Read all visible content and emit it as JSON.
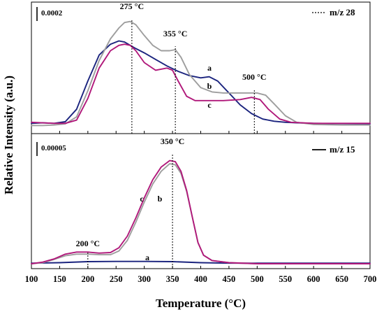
{
  "chart_data": {
    "type": "line",
    "xlabel": "Temperature (°C)",
    "ylabel": "Relative Intensity (a.u.)",
    "xlim": [
      100,
      700
    ],
    "xticks": [
      100,
      150,
      200,
      250,
      300,
      350,
      400,
      450,
      500,
      550,
      600,
      650,
      700
    ],
    "colors": {
      "a": "#1a237e",
      "b": "#9e9e9e",
      "c": "#b0187a"
    },
    "panels": [
      {
        "legend": "m/z 28",
        "legend_style": "dotted",
        "scale_bar": "0.0002",
        "ylim": [
          0,
          10
        ],
        "peak_labels": [
          {
            "label": "275 °C",
            "x": 278
          },
          {
            "label": "355 °C",
            "x": 355
          },
          {
            "label": "500 °C",
            "x": 495
          }
        ],
        "series_labels": [
          {
            "text": "a",
            "series": "a"
          },
          {
            "text": "b",
            "series": "b"
          },
          {
            "text": "c",
            "series": "c"
          }
        ],
        "series": [
          {
            "id": "a",
            "x": [
              100,
              120,
              140,
              160,
              180,
              200,
              220,
              240,
              255,
              265,
              275,
              285,
              300,
              320,
              340,
              360,
              380,
              400,
              415,
              430,
              450,
              470,
              490,
              510,
              530,
              550,
              570,
              600,
              650,
              700
            ],
            "y": [
              0.3,
              0.35,
              0.3,
              0.45,
              1.6,
              4.2,
              6.6,
              7.6,
              7.9,
              7.8,
              7.5,
              7.2,
              6.8,
              6.2,
              5.6,
              5.1,
              4.7,
              4.5,
              4.6,
              4.2,
              3.1,
              2.0,
              1.2,
              0.7,
              0.5,
              0.4,
              0.35,
              0.3,
              0.28,
              0.25
            ]
          },
          {
            "id": "b",
            "x": [
              100,
              120,
              140,
              160,
              180,
              200,
              220,
              240,
              255,
              265,
              275,
              285,
              300,
              315,
              330,
              345,
              355,
              365,
              380,
              400,
              420,
              440,
              460,
              480,
              500,
              515,
              530,
              550,
              570,
              600,
              650,
              700
            ],
            "y": [
              0.1,
              0.1,
              0.15,
              0.25,
              0.9,
              3.3,
              6.1,
              8.1,
              9.1,
              9.6,
              9.7,
              9.4,
              8.4,
              7.5,
              7.0,
              7.0,
              7.1,
              6.4,
              4.8,
              3.6,
              3.2,
              3.1,
              3.1,
              3.1,
              3.1,
              2.9,
              2.1,
              1.0,
              0.4,
              0.2,
              0.15,
              0.15
            ]
          },
          {
            "id": "c",
            "x": [
              100,
              140,
              160,
              180,
              200,
              220,
              240,
              255,
              265,
              275,
              285,
              300,
              320,
              340,
              350,
              360,
              375,
              390,
              410,
              440,
              470,
              490,
              505,
              520,
              540,
              560,
              600,
              650,
              700
            ],
            "y": [
              0.4,
              0.3,
              0.3,
              0.6,
              2.6,
              5.4,
              7.0,
              7.5,
              7.6,
              7.5,
              7.0,
              5.9,
              5.2,
              5.4,
              5.2,
              4.2,
              2.8,
              2.4,
              2.4,
              2.4,
              2.5,
              2.7,
              2.5,
              1.6,
              0.7,
              0.4,
              0.3,
              0.3,
              0.3
            ]
          }
        ]
      },
      {
        "legend": "m/z 15",
        "legend_style": "solid",
        "scale_bar": "0.00005",
        "ylim": [
          0,
          10
        ],
        "peak_labels": [
          {
            "label": "200 °C",
            "x": 200
          },
          {
            "label": "350 °C",
            "x": 350
          }
        ],
        "series_labels": [
          {
            "text": "c",
            "series": "c"
          },
          {
            "text": "b",
            "series": "b"
          },
          {
            "text": "a",
            "series": "a"
          }
        ],
        "series": [
          {
            "id": "a",
            "x": [
              100,
              150,
              200,
              250,
              300,
              350,
              400,
              450,
              500,
              550,
              600,
              650,
              700
            ],
            "y": [
              0.05,
              0.1,
              0.2,
              0.22,
              0.22,
              0.2,
              0.1,
              0.05,
              0.05,
              0.05,
              0.05,
              0.05,
              0.05
            ]
          },
          {
            "id": "b",
            "x": [
              100,
              120,
              140,
              160,
              180,
              200,
              220,
              240,
              255,
              270,
              285,
              300,
              315,
              330,
              345,
              355,
              365,
              375,
              385,
              395,
              405,
              420,
              450,
              500,
              600,
              700
            ],
            "y": [
              0.0,
              0.1,
              0.4,
              0.75,
              0.9,
              0.9,
              0.85,
              0.85,
              1.2,
              2.2,
              3.9,
              5.8,
              7.5,
              8.7,
              9.4,
              9.3,
              8.5,
              6.8,
              4.4,
              2.0,
              0.8,
              0.3,
              0.1,
              0.0,
              0.0,
              0.0
            ]
          },
          {
            "id": "c",
            "x": [
              100,
              120,
              140,
              160,
              180,
              200,
              220,
              240,
              255,
              270,
              285,
              300,
              315,
              330,
              345,
              355,
              365,
              375,
              385,
              395,
              405,
              420,
              450,
              500,
              600,
              700
            ],
            "y": [
              0.0,
              0.15,
              0.45,
              0.9,
              1.1,
              1.1,
              1.0,
              1.05,
              1.5,
              2.6,
              4.3,
              6.2,
              7.9,
              9.1,
              9.7,
              9.6,
              8.7,
              6.9,
              4.4,
              2.0,
              0.8,
              0.3,
              0.1,
              0.0,
              0.0,
              0.0
            ]
          }
        ]
      }
    ]
  }
}
